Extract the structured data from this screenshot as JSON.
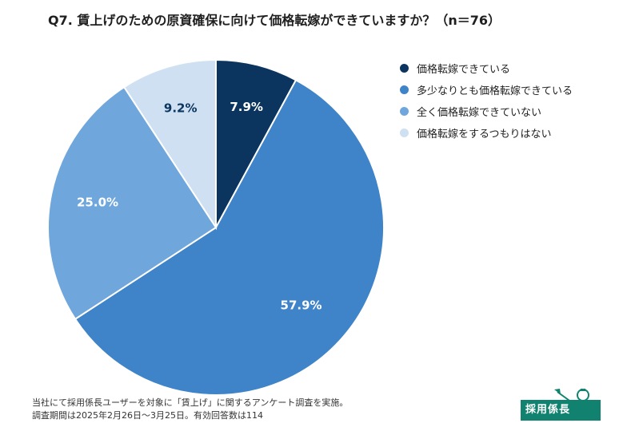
{
  "title": "Q7. 賃上げのための原資確保に向けて価格転嫁ができていますか？（n＝76）",
  "chart_data": {
    "type": "pie",
    "title": "Q7. 賃上げのための原資確保に向けて価格転嫁ができていますか？（n＝76）",
    "legend_position": "right",
    "slices": [
      {
        "label": "価格転嫁できている",
        "value": 7.9,
        "value_label": "7.9%",
        "color": "#0b355f",
        "label_color": "#ffffff"
      },
      {
        "label": "多少なりとも価格転嫁できている",
        "value": 57.9,
        "value_label": "57.9%",
        "color": "#3f83c8",
        "label_color": "#ffffff"
      },
      {
        "label": "全く価格転嫁できていない",
        "value": 25.0,
        "value_label": "25.0%",
        "color": "#6fa6dc",
        "label_color": "#ffffff"
      },
      {
        "label": "価格転嫁をするつもりはない",
        "value": 9.2,
        "value_label": "9.2%",
        "color": "#cfe0f2",
        "label_color": "#0b355f"
      }
    ]
  },
  "footnote": {
    "line1": "当社にて採用係長ユーザーを対象に「賃上げ」に関するアンケート調査を実施。",
    "line2": "調査期間は2025年2月26日〜3月25日。有効回答数は114"
  },
  "logo": {
    "text": "採用係長"
  }
}
